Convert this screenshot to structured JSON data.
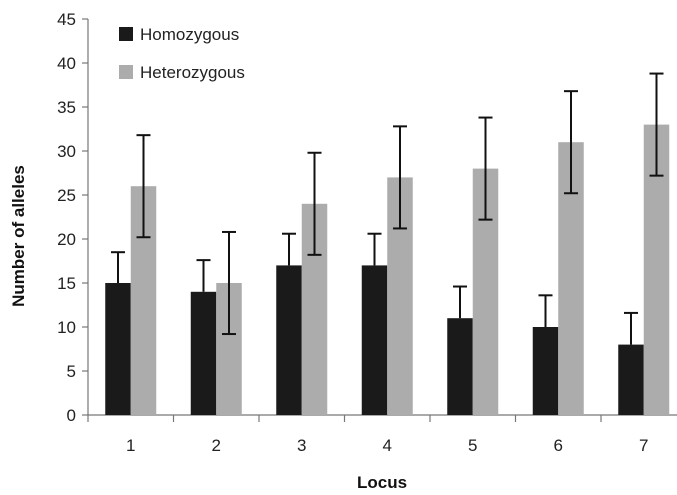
{
  "chart_data": {
    "type": "bar",
    "title": "",
    "xlabel": "Locus",
    "ylabel": "Number of alleles",
    "categories": [
      "1",
      "2",
      "3",
      "4",
      "5",
      "6",
      "7"
    ],
    "ylim": [
      0,
      45
    ],
    "yticks": [
      0,
      5,
      10,
      15,
      20,
      25,
      30,
      35,
      40,
      45
    ],
    "grid": false,
    "legend_position": "top-left",
    "series": [
      {
        "name": "Homozygous",
        "color": "#1a1a1a",
        "values": [
          15,
          14,
          17,
          17,
          11,
          10,
          8
        ],
        "errors": [
          3.5,
          3.6,
          3.6,
          3.6,
          3.6,
          3.6,
          3.6
        ]
      },
      {
        "name": "Heterozygous",
        "color": "#acacac",
        "values": [
          26,
          15,
          24,
          27,
          28,
          31,
          33
        ],
        "errors": [
          5.8,
          5.8,
          5.8,
          5.8,
          5.8,
          5.8,
          5.8
        ]
      }
    ]
  }
}
